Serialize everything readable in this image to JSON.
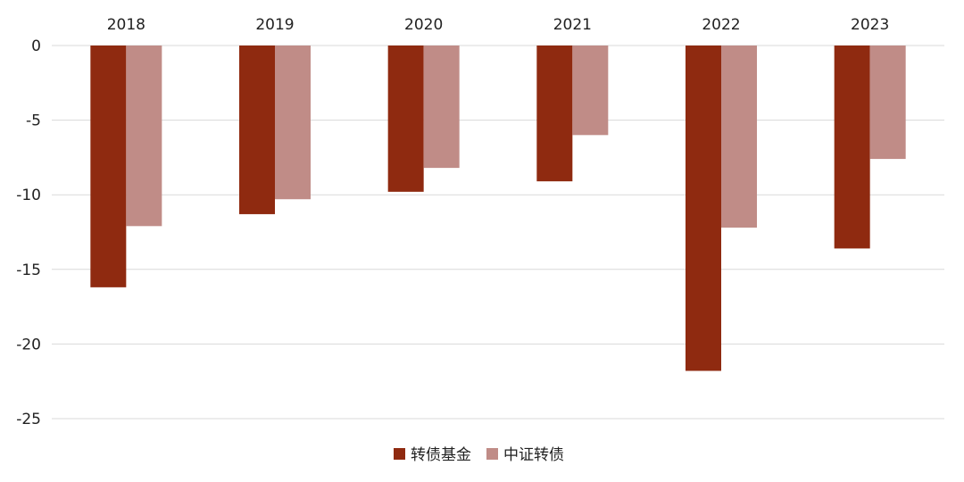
{
  "chart_data": {
    "type": "bar",
    "categories": [
      "2018",
      "2019",
      "2020",
      "2021",
      "2022",
      "2023"
    ],
    "series": [
      {
        "name": "转债基金",
        "color": "#8f2a10",
        "values": [
          -16.2,
          -11.3,
          -9.8,
          -9.1,
          -21.8,
          -13.6
        ]
      },
      {
        "name": "中证转债",
        "color": "#c08c87",
        "values": [
          -12.1,
          -10.3,
          -8.2,
          -6.0,
          -12.2,
          -7.6
        ]
      }
    ],
    "yticks": [
      0,
      -5,
      -10,
      -15,
      -20,
      -25
    ],
    "ytick_labels": [
      "0",
      "-5",
      "-10",
      "-15",
      "-20",
      "-25"
    ],
    "ylim": [
      -25,
      0
    ],
    "category_axis_position": "top",
    "grid": true,
    "legend_position": "bottom-center",
    "title": "",
    "xlabel": "",
    "ylabel": ""
  }
}
